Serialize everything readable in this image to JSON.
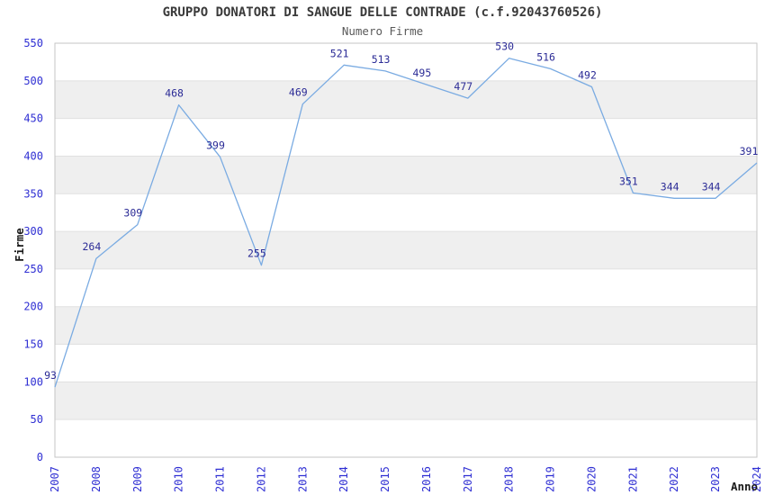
{
  "chart_data": {
    "type": "line",
    "title": "GRUPPO DONATORI DI SANGUE DELLE CONTRADE (c.f.92043760526)",
    "subtitle": "Numero Firme",
    "xlabel": "Anno",
    "ylabel": "Firme",
    "x": [
      2007,
      2008,
      2009,
      2010,
      2011,
      2012,
      2013,
      2014,
      2015,
      2016,
      2017,
      2018,
      2019,
      2020,
      2021,
      2022,
      2023,
      2024
    ],
    "values": [
      93,
      264,
      309,
      468,
      399,
      255,
      469,
      521,
      513,
      495,
      477,
      530,
      516,
      492,
      351,
      344,
      344,
      391
    ],
    "ylim": [
      0,
      550
    ],
    "ytick_step": 50,
    "grid": "horizontal gridlines with alternating shaded bands",
    "legend": "none",
    "point_labels_shown": true,
    "colors": {
      "line": "#7aabe2",
      "tick_labels": "#2f2fd3",
      "data_labels": "#2b2b96",
      "band_fill": "#efefef",
      "gridline": "#e0e0e0",
      "frame": "#c6c6c6",
      "title": "#3a3a3a",
      "subtitle": "#5a5a5a",
      "axis_titles": "#1a1a1a",
      "background": "#ffffff"
    }
  }
}
